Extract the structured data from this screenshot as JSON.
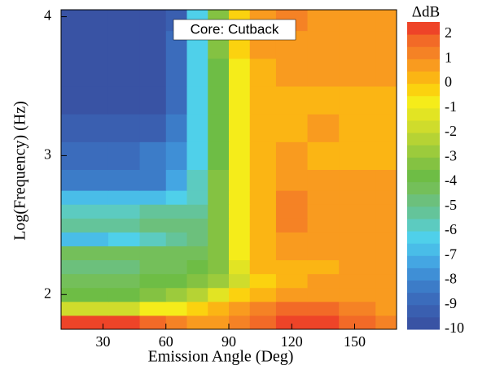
{
  "chart_data": {
    "type": "heatmap",
    "annotation": "Core: Cutback",
    "x_label": "Emission Angle (Deg)",
    "y_label": "Log(Frequency) (Hz)",
    "colorbar_title": "ΔdB",
    "x": [
      10,
      25,
      40,
      55,
      65,
      75,
      85,
      95,
      105,
      120,
      135,
      150,
      170
    ],
    "y": [
      1.8,
      1.9,
      2.0,
      2.1,
      2.2,
      2.3,
      2.4,
      2.5,
      2.6,
      2.7,
      2.8,
      3.0,
      3.2,
      3.4,
      3.6,
      3.8,
      4.0
    ],
    "z": [
      [
        2,
        2,
        2,
        1.5,
        1,
        0.5,
        0.5,
        1,
        1.5,
        2.5,
        2.5,
        1.5,
        1
      ],
      [
        -2,
        -2,
        -2,
        -1,
        -1,
        -0.5,
        0,
        0.5,
        1,
        1.5,
        1.5,
        1,
        0.5
      ],
      [
        -4,
        -4,
        -4,
        -3.5,
        -3,
        -2.5,
        -1.5,
        -0.5,
        0,
        0.5,
        0.5,
        0.5,
        0.5
      ],
      [
        -4.5,
        -4.5,
        -4.5,
        -4,
        -4,
        -3.5,
        -3,
        -2,
        -0.5,
        0,
        0.5,
        0.5,
        0.5
      ],
      [
        -5,
        -5,
        -5,
        -4.5,
        -4.5,
        -4,
        -3.5,
        -1.5,
        0,
        0,
        0,
        0.5,
        0.5
      ],
      [
        -4.5,
        -4.5,
        -4.5,
        -4.5,
        -4.5,
        -4.5,
        -3.5,
        -1,
        0,
        0.5,
        0.5,
        0.5,
        0.5
      ],
      [
        -7,
        -7,
        -6.5,
        -6,
        -5.5,
        -5,
        -3.5,
        -1,
        0,
        0.5,
        0.5,
        0.5,
        0.5
      ],
      [
        -5.5,
        -5.5,
        -5.5,
        -5,
        -5,
        -5,
        -3.5,
        -1,
        0,
        1,
        0.5,
        0.5,
        0.5
      ],
      [
        -6,
        -6,
        -6,
        -5.5,
        -5.5,
        -5.5,
        -3.5,
        -1,
        0,
        1,
        0.5,
        0.5,
        0.5
      ],
      [
        -7,
        -7,
        -7,
        -7,
        -6.5,
        -6,
        -3.5,
        -1,
        0,
        1,
        0.5,
        0.5,
        0.5
      ],
      [
        -8.5,
        -8.5,
        -8.5,
        -8.5,
        -7.5,
        -6,
        -3.5,
        -1,
        0,
        0.5,
        0.5,
        0.5,
        0.5
      ],
      [
        -9,
        -9,
        -9,
        -8.5,
        -8,
        -6.5,
        -4,
        -1,
        0,
        0.5,
        0,
        0,
        0
      ],
      [
        -9.5,
        -9.5,
        -9.5,
        -9.5,
        -8.5,
        -6.5,
        -4,
        -1,
        0,
        0,
        0.5,
        0,
        0
      ],
      [
        -10,
        -10,
        -10,
        -10,
        -9,
        -6.5,
        -4,
        -1,
        0,
        0,
        0,
        0,
        0
      ],
      [
        -10,
        -10,
        -10,
        -10,
        -9,
        -6.5,
        -4,
        -1,
        0,
        0.5,
        0.5,
        0.5,
        0.5
      ],
      [
        -10,
        -10,
        -10,
        -10,
        -9,
        -6.5,
        -3.5,
        -0.5,
        0.5,
        0.5,
        0.5,
        0.5,
        0.5
      ],
      [
        -10,
        -10,
        -10,
        -10,
        -9.5,
        -6.5,
        -3.5,
        -0.5,
        0.5,
        1,
        0.5,
        0.5,
        0.5
      ]
    ],
    "xlim": [
      10,
      170
    ],
    "xticks": [
      30,
      60,
      90,
      120,
      150
    ],
    "ylim": [
      1.75,
      4.05
    ],
    "yticks": [
      2,
      3,
      4
    ],
    "zlim": [
      -10,
      2.5
    ],
    "zticks": [
      2,
      1,
      0,
      -1,
      -2,
      -3,
      -4,
      -5,
      -6,
      -7,
      -8,
      -9,
      -10
    ],
    "colors": [
      "#3953a4",
      "#3a5fb0",
      "#3b6cbc",
      "#3c7cc8",
      "#3f8fd6",
      "#44a6e3",
      "#49bde8",
      "#4fd0ea",
      "#5ccbc0",
      "#64c49a",
      "#6cc07c",
      "#74bf5a",
      "#6ebd45",
      "#84c242",
      "#9ccb3c",
      "#b6d334",
      "#cfdc2c",
      "#e2e423",
      "#f5ec1a",
      "#fbd20f",
      "#fbb514",
      "#f99b1f",
      "#f58225",
      "#f26a27",
      "#ee4428"
    ]
  }
}
